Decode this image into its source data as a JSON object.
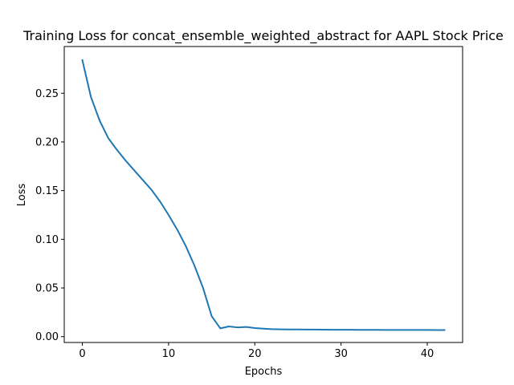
{
  "chart_data": {
    "type": "line",
    "title": "Training Loss for concat_ensemble_weighted_abstract for AAPL Stock Price",
    "xlabel": "Epochs",
    "ylabel": "Loss",
    "xlim": [
      -2.1,
      44.1
    ],
    "ylim": [
      -0.006,
      0.298
    ],
    "xticks": [
      0,
      10,
      20,
      30,
      40
    ],
    "xtick_labels": [
      "0",
      "10",
      "20",
      "30",
      "40"
    ],
    "yticks": [
      0.0,
      0.05,
      0.1,
      0.15,
      0.2,
      0.25
    ],
    "ytick_labels": [
      "0.00",
      "0.05",
      "0.10",
      "0.15",
      "0.20",
      "0.25"
    ],
    "grid": false,
    "legend": "none",
    "series": [
      {
        "color": "#1f77b4",
        "x": [
          0,
          1,
          2,
          3,
          4,
          5,
          6,
          7,
          8,
          9,
          10,
          11,
          12,
          13,
          14,
          15,
          16,
          17,
          18,
          19,
          20,
          21,
          22,
          23,
          24,
          25,
          26,
          27,
          28,
          29,
          30,
          31,
          32,
          33,
          34,
          35,
          36,
          37,
          38,
          39,
          40,
          41,
          42
        ],
        "y": [
          0.284,
          0.246,
          0.222,
          0.204,
          0.192,
          0.181,
          0.171,
          0.161,
          0.151,
          0.139,
          0.125,
          0.11,
          0.093,
          0.073,
          0.05,
          0.021,
          0.0085,
          0.0105,
          0.0095,
          0.01,
          0.0088,
          0.0082,
          0.0077,
          0.0075,
          0.0074,
          0.0074,
          0.0073,
          0.0073,
          0.0072,
          0.0071,
          0.0071,
          0.0071,
          0.007,
          0.007,
          0.007,
          0.0069,
          0.0069,
          0.0069,
          0.0069,
          0.0069,
          0.0069,
          0.0068,
          0.0068
        ]
      }
    ]
  }
}
